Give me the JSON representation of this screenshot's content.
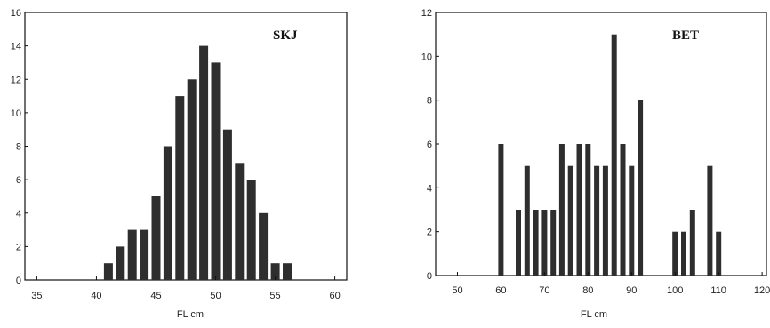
{
  "chart_data": [
    {
      "type": "bar",
      "title": "SKJ",
      "xlabel": "FL cm",
      "ylabel": "",
      "xlim": [
        34,
        61
      ],
      "ylim": [
        0,
        16
      ],
      "x_ticks": [
        35,
        40,
        45,
        50,
        55,
        60
      ],
      "y_ticks": [
        0,
        2,
        4,
        6,
        8,
        10,
        12,
        14,
        16
      ],
      "x": [
        41,
        42,
        43,
        44,
        45,
        46,
        47,
        48,
        49,
        50,
        51,
        52,
        53,
        54,
        55,
        56
      ],
      "values": [
        1,
        2,
        3,
        3,
        5,
        8,
        11,
        12,
        14,
        13,
        9,
        7,
        6,
        4,
        1,
        1
      ]
    },
    {
      "type": "bar",
      "title": "BET",
      "xlabel": "FL cm",
      "ylabel": "",
      "xlim": [
        45,
        121
      ],
      "ylim": [
        0,
        12
      ],
      "x_ticks": [
        50,
        60,
        70,
        80,
        90,
        100,
        110,
        120
      ],
      "y_ticks": [
        0,
        2,
        4,
        6,
        8,
        10,
        12
      ],
      "x": [
        60,
        64,
        66,
        68,
        70,
        72,
        74,
        76,
        78,
        80,
        82,
        84,
        86,
        88,
        90,
        92,
        100,
        102,
        104,
        108,
        110
      ],
      "values": [
        6,
        3,
        5,
        3,
        3,
        3,
        6,
        5,
        6,
        6,
        5,
        5,
        11,
        6,
        5,
        8,
        2,
        2,
        3,
        5,
        2
      ]
    }
  ]
}
